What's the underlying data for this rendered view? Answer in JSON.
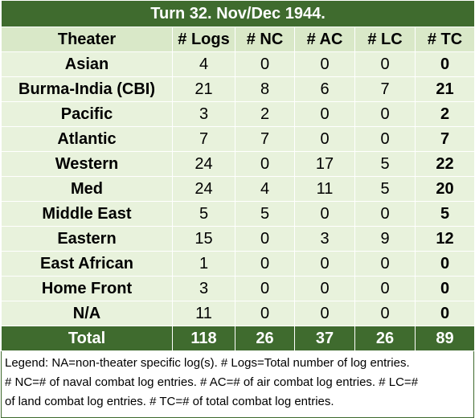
{
  "title": "Turn 32.  Nov/Dec 1944.",
  "headers": [
    "Theater",
    "# Logs",
    "# NC",
    "# AC",
    "# LC",
    "# TC"
  ],
  "rows": [
    {
      "theater": "Asian",
      "logs": "4",
      "nc": "0",
      "ac": "0",
      "lc": "0",
      "tc": "0"
    },
    {
      "theater": "Burma-India (CBI)",
      "logs": "21",
      "nc": "8",
      "ac": "6",
      "lc": "7",
      "tc": "21"
    },
    {
      "theater": "Pacific",
      "logs": "3",
      "nc": "2",
      "ac": "0",
      "lc": "0",
      "tc": "2"
    },
    {
      "theater": "Atlantic",
      "logs": "7",
      "nc": "7",
      "ac": "0",
      "lc": "0",
      "tc": "7"
    },
    {
      "theater": "Western",
      "logs": "24",
      "nc": "0",
      "ac": "17",
      "lc": "5",
      "tc": "22"
    },
    {
      "theater": "Med",
      "logs": "24",
      "nc": "4",
      "ac": "11",
      "lc": "5",
      "tc": "20"
    },
    {
      "theater": "Middle East",
      "logs": "5",
      "nc": "5",
      "ac": "0",
      "lc": "0",
      "tc": "5"
    },
    {
      "theater": "Eastern",
      "logs": "15",
      "nc": "0",
      "ac": "3",
      "lc": "9",
      "tc": "12"
    },
    {
      "theater": "East African",
      "logs": "1",
      "nc": "0",
      "ac": "0",
      "lc": "0",
      "tc": "0"
    },
    {
      "theater": "Home Front",
      "logs": "3",
      "nc": "0",
      "ac": "0",
      "lc": "0",
      "tc": "0"
    },
    {
      "theater": "N/A",
      "logs": "11",
      "nc": "0",
      "ac": "0",
      "lc": "0",
      "tc": "0"
    }
  ],
  "total": {
    "theater": "Total",
    "logs": "118",
    "nc": "26",
    "ac": "37",
    "lc": "26",
    "tc": "89"
  },
  "legend": {
    "line1": "Legend:  NA=non-theater specific log(s).  # Logs=Total number of log entries.",
    "line2": "# NC=# of naval combat log entries.  # AC=# of air combat log entries.  # LC=#",
    "line3": "of land combat log entries.  # TC=# of total combat log entries."
  },
  "colors": {
    "dark_green": "#3f6b2e",
    "light_green": "#e8f2dc",
    "header_green": "#d9e8c8"
  }
}
